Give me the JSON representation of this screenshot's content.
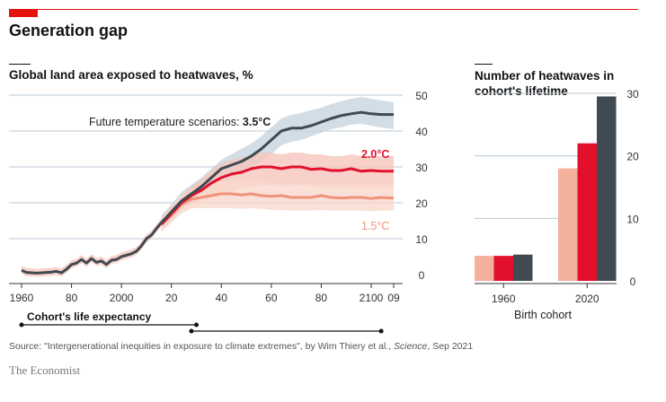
{
  "header": {
    "title": "Generation gap",
    "source_prefix": "Source: \"Intergenerational inequities in exposure to climate extremes\", by Wim Thiery et al., ",
    "source_journal": "Science",
    "source_suffix": ", Sep 2021",
    "brand": "The Economist"
  },
  "colors": {
    "accent": "#e3120b",
    "s35": "#3f4a52",
    "s20": "#e3102d",
    "s15": "#f0937a",
    "bar15": "#f3b09a",
    "band35": "#c7d5df",
    "band20": "#f6c7bd",
    "band15": "#f9d8cc",
    "grid": "#b8c8d6"
  },
  "chart_data": [
    {
      "type": "line",
      "title": "Global land area exposed to heatwaves, %",
      "annotation_prefix": "Future temperature scenarios: ",
      "ylim": [
        0,
        50
      ],
      "xlim": [
        1960,
        2109
      ],
      "y_ticks": [
        "0",
        "10",
        "20",
        "30",
        "40",
        "50"
      ],
      "x_ticks": [
        {
          "value": 1960,
          "label": "1960"
        },
        {
          "value": 1980,
          "label": "80"
        },
        {
          "value": 2000,
          "label": "2000"
        },
        {
          "value": 2020,
          "label": "20"
        },
        {
          "value": 2040,
          "label": "40"
        },
        {
          "value": 2060,
          "label": "60"
        },
        {
          "value": 2080,
          "label": "80"
        },
        {
          "value": 2100,
          "label": "2100"
        },
        {
          "value": 2109,
          "label": "09"
        }
      ],
      "historical": {
        "x": [
          1960,
          1962,
          1964,
          1966,
          1968,
          1970,
          1972,
          1974,
          1976,
          1978,
          1980,
          1982,
          1984,
          1986,
          1988,
          1990,
          1992,
          1994,
          1996,
          1998,
          2000,
          2002,
          2004,
          2006,
          2008,
          2010,
          2012,
          2014,
          2016
        ],
        "y": [
          1.2,
          0.6,
          0.5,
          0.4,
          0.5,
          0.6,
          0.7,
          0.9,
          0.5,
          1.5,
          2.8,
          3.2,
          4.2,
          3.2,
          4.5,
          3.4,
          3.8,
          2.8,
          4.0,
          4.2,
          5.0,
          5.4,
          5.8,
          6.5,
          8.0,
          10.0,
          11.0,
          12.8,
          14.5
        ]
      },
      "series": [
        {
          "name": "3.5°C",
          "x": [
            2016,
            2020,
            2024,
            2028,
            2032,
            2036,
            2040,
            2044,
            2048,
            2052,
            2056,
            2060,
            2064,
            2068,
            2072,
            2076,
            2080,
            2084,
            2088,
            2092,
            2096,
            2100,
            2104,
            2109
          ],
          "y": [
            14.5,
            17.5,
            20.5,
            22.5,
            24.5,
            27.0,
            29.5,
            30.5,
            31.5,
            33.0,
            35.0,
            37.5,
            40.0,
            40.8,
            40.8,
            41.5,
            42.5,
            43.5,
            44.3,
            44.8,
            45.2,
            44.8,
            44.6,
            44.6
          ],
          "band_low": [
            12.5,
            15.5,
            18.5,
            20.5,
            22.5,
            25.0,
            27.0,
            27.5,
            28.5,
            30.0,
            31.5,
            33.5,
            36.0,
            37.0,
            37.5,
            38.5,
            39.5,
            40.5,
            41.0,
            41.8,
            42.0,
            41.5,
            41.0,
            40.5
          ],
          "band_high": [
            16.5,
            19.5,
            23.0,
            25.0,
            27.0,
            29.5,
            32.0,
            33.5,
            35.0,
            36.5,
            38.5,
            41.0,
            43.5,
            44.5,
            45.0,
            45.8,
            46.5,
            47.5,
            48.3,
            49.0,
            49.5,
            49.0,
            48.5,
            48.0
          ]
        },
        {
          "name": "2.0°C",
          "x": [
            2016,
            2020,
            2024,
            2028,
            2032,
            2036,
            2040,
            2044,
            2048,
            2052,
            2056,
            2060,
            2064,
            2068,
            2072,
            2076,
            2080,
            2084,
            2088,
            2092,
            2096,
            2100,
            2104,
            2109
          ],
          "y": [
            14.0,
            17.0,
            20.0,
            22.0,
            23.5,
            25.5,
            27.0,
            28.0,
            28.5,
            29.5,
            30.0,
            30.0,
            29.5,
            30.0,
            30.0,
            29.3,
            29.5,
            29.0,
            29.0,
            29.5,
            28.8,
            29.0,
            28.8,
            28.8
          ],
          "band_low": [
            12.0,
            15.0,
            18.0,
            19.5,
            20.5,
            21.5,
            22.5,
            23.0,
            24.0,
            24.5,
            25.0,
            25.0,
            24.5,
            25.0,
            25.0,
            24.5,
            24.5,
            24.0,
            24.0,
            24.5,
            24.0,
            24.0,
            24.0,
            24.0
          ],
          "band_high": [
            16.0,
            19.0,
            22.0,
            24.5,
            26.5,
            29.0,
            31.0,
            32.0,
            32.5,
            33.5,
            34.0,
            34.0,
            33.5,
            34.0,
            34.0,
            33.5,
            33.5,
            33.0,
            33.0,
            33.5,
            33.0,
            33.0,
            33.0,
            33.0
          ]
        },
        {
          "name": "1.5°C",
          "x": [
            2016,
            2020,
            2024,
            2028,
            2032,
            2036,
            2040,
            2044,
            2048,
            2052,
            2056,
            2060,
            2064,
            2068,
            2072,
            2076,
            2080,
            2084,
            2088,
            2092,
            2096,
            2100,
            2104,
            2109
          ],
          "y": [
            14.0,
            16.5,
            19.5,
            21.0,
            21.5,
            22.0,
            22.5,
            22.5,
            22.2,
            22.5,
            22.0,
            21.8,
            22.0,
            21.5,
            21.5,
            21.5,
            22.0,
            21.5,
            21.3,
            21.5,
            21.5,
            21.2,
            21.5,
            21.3
          ],
          "band_low": [
            12.0,
            14.5,
            17.0,
            18.5,
            18.5,
            18.5,
            18.5,
            18.5,
            18.3,
            18.5,
            18.3,
            18.0,
            18.0,
            17.8,
            17.8,
            17.8,
            18.0,
            17.8,
            17.8,
            17.8,
            17.8,
            17.7,
            17.8,
            17.8
          ],
          "band_high": [
            16.0,
            18.5,
            22.0,
            23.5,
            24.5,
            25.5,
            26.0,
            26.0,
            26.0,
            26.0,
            25.8,
            25.5,
            25.5,
            25.3,
            25.3,
            25.3,
            25.5,
            25.3,
            25.3,
            25.3,
            25.3,
            25.3,
            25.3,
            25.3
          ]
        }
      ],
      "life_expectancy": {
        "label": "Cohort's life expectancy",
        "cohort_1960_range": [
          1960,
          2030
        ],
        "cohort_2020_range": [
          2028,
          2104
        ]
      }
    },
    {
      "type": "bar",
      "title": "Number of heatwaves in cohort's lifetime",
      "xlabel": "Birth cohort",
      "categories": [
        "1960",
        "2020"
      ],
      "ylim": [
        0,
        30
      ],
      "y_ticks": [
        "0",
        "10",
        "20",
        "30"
      ],
      "series": [
        {
          "name": "1.5°C",
          "values": [
            4,
            18
          ]
        },
        {
          "name": "2.0°C",
          "values": [
            4,
            22
          ]
        },
        {
          "name": "3.5°C",
          "values": [
            4.2,
            29.5
          ]
        }
      ]
    }
  ]
}
